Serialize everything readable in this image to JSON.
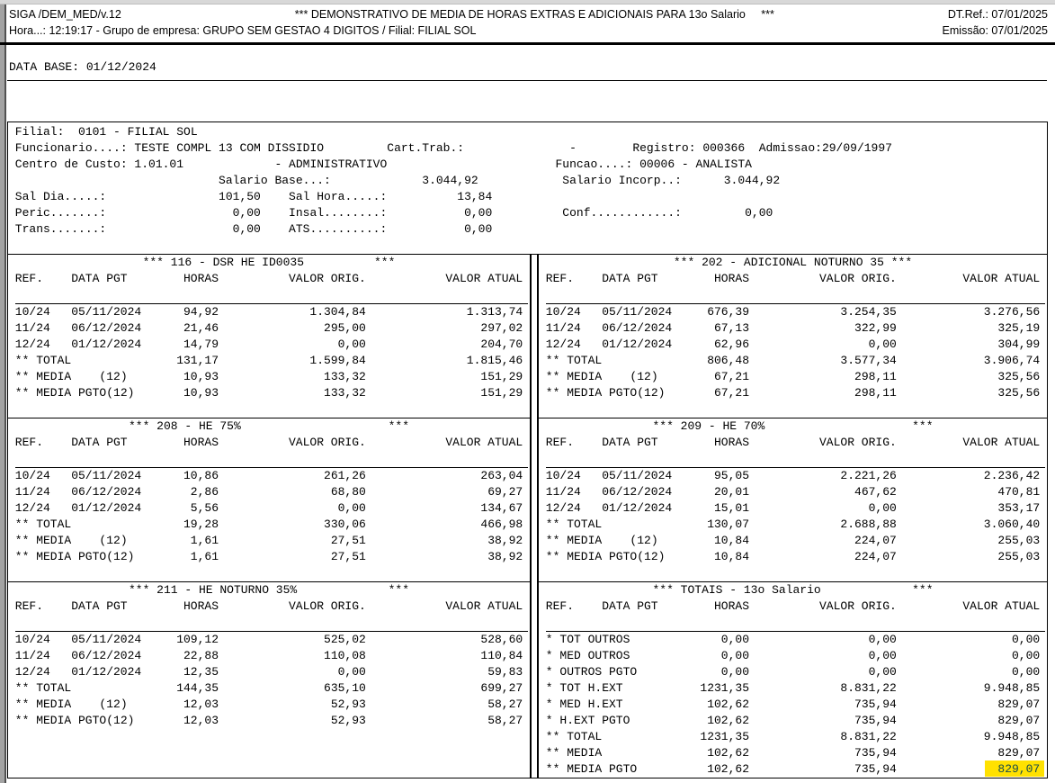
{
  "header": {
    "app_id": "SIGA /DEM_MED/v.12",
    "title": "*** DEMONSTRATIVO DE MEDIA DE HORAS EXTRAS E ADICIONAIS PARA 13o Salario     ***",
    "dt_ref": "DT.Ref.: 07/01/2025",
    "line2": "Hora...: 12:19:17 - Grupo de empresa: GRUPO SEM GESTAO 4 DIGITOS / Filial: FILIAL SOL",
    "emissao": "Emissão: 07/01/2025"
  },
  "data_base": "DATA BASE: 01/12/2024",
  "employee": {
    "lines": [
      " Filial:  0101 - FILIAL SOL",
      " Funcionario....: TESTE COMPL 13 COM DISSIDIO         Cart.Trab.:               -        Registro: 000366  Admissao:29/09/1997",
      " Centro de Custo: 1.01.01             - ADMINISTRATIVO                        Funcao....: 00006 - ANALISTA",
      "                              Salario Base...:             3.044,92            Salario Incorp..:      3.044,92",
      " Sal Dia.....:                101,50    Sal Hora.....:          13,84",
      " Peric.......:                  0,00    Insal........:           0,00          Conf............:         0,00",
      " Trans.......:                  0,00    ATS..........:           0,00",
      ""
    ]
  },
  "table_columns": [
    "REF.",
    "DATA PGT",
    "HORAS",
    "VALOR ORIG.",
    "VALOR ATUAL"
  ],
  "panels": [
    {
      "title": "*** 116 - DSR HE ID0035          ***",
      "rows": [
        [
          "10/24",
          "05/11/2024",
          "94,92",
          "1.304,84",
          "1.313,74"
        ],
        [
          "11/24",
          "06/12/2024",
          "21,46",
          "295,00",
          "297,02"
        ],
        [
          "12/24",
          "01/12/2024",
          "14,79",
          "0,00",
          "204,70"
        ],
        [
          "** TOTAL",
          "",
          "131,17",
          "1.599,84",
          "1.815,46"
        ],
        [
          "** MEDIA    (12)",
          "",
          "10,93",
          "133,32",
          "151,29"
        ],
        [
          "** MEDIA PGTO(12)",
          "",
          "10,93",
          "133,32",
          "151,29"
        ]
      ]
    },
    {
      "title": "*** 202 - ADICIONAL NOTURNO 35 ***",
      "rows": [
        [
          "10/24",
          "05/11/2024",
          "676,39",
          "3.254,35",
          "3.276,56"
        ],
        [
          "11/24",
          "06/12/2024",
          "67,13",
          "322,99",
          "325,19"
        ],
        [
          "12/24",
          "01/12/2024",
          "62,96",
          "0,00",
          "304,99"
        ],
        [
          "** TOTAL",
          "",
          "806,48",
          "3.577,34",
          "3.906,74"
        ],
        [
          "** MEDIA    (12)",
          "",
          "67,21",
          "298,11",
          "325,56"
        ],
        [
          "** MEDIA PGTO(12)",
          "",
          "67,21",
          "298,11",
          "325,56"
        ]
      ]
    },
    {
      "title": "*** 208 - HE 75%                     ***",
      "rows": [
        [
          "10/24",
          "05/11/2024",
          "10,86",
          "261,26",
          "263,04"
        ],
        [
          "11/24",
          "06/12/2024",
          "2,86",
          "68,80",
          "69,27"
        ],
        [
          "12/24",
          "01/12/2024",
          "5,56",
          "0,00",
          "134,67"
        ],
        [
          "** TOTAL",
          "",
          "19,28",
          "330,06",
          "466,98"
        ],
        [
          "** MEDIA    (12)",
          "",
          "1,61",
          "27,51",
          "38,92"
        ],
        [
          "** MEDIA PGTO(12)",
          "",
          "1,61",
          "27,51",
          "38,92"
        ]
      ]
    },
    {
      "title": "*** 209 - HE 70%                     ***",
      "rows": [
        [
          "10/24",
          "05/11/2024",
          "95,05",
          "2.221,26",
          "2.236,42"
        ],
        [
          "11/24",
          "06/12/2024",
          "20,01",
          "467,62",
          "470,81"
        ],
        [
          "12/24",
          "01/12/2024",
          "15,01",
          "0,00",
          "353,17"
        ],
        [
          "** TOTAL",
          "",
          "130,07",
          "2.688,88",
          "3.060,40"
        ],
        [
          "** MEDIA    (12)",
          "",
          "10,84",
          "224,07",
          "255,03"
        ],
        [
          "** MEDIA PGTO(12)",
          "",
          "10,84",
          "224,07",
          "255,03"
        ]
      ]
    },
    {
      "title": "*** 211 - HE NOTURNO 35%             ***",
      "rows": [
        [
          "10/24",
          "05/11/2024",
          "109,12",
          "525,02",
          "528,60"
        ],
        [
          "11/24",
          "06/12/2024",
          "22,88",
          "110,08",
          "110,84"
        ],
        [
          "12/24",
          "01/12/2024",
          "12,35",
          "0,00",
          "59,83"
        ],
        [
          "** TOTAL",
          "",
          "144,35",
          "635,10",
          "699,27"
        ],
        [
          "** MEDIA    (12)",
          "",
          "12,03",
          "52,93",
          "58,27"
        ],
        [
          "** MEDIA PGTO(12)",
          "",
          "12,03",
          "52,93",
          "58,27"
        ]
      ]
    },
    {
      "title": "*** TOTAIS - 13o Salario             ***",
      "rows": [
        [
          "* TOT OUTROS",
          "",
          "0,00",
          "0,00",
          "0,00"
        ],
        [
          "* MED OUTROS",
          "",
          "0,00",
          "0,00",
          "0,00"
        ],
        [
          "* OUTROS PGTO",
          "",
          "0,00",
          "0,00",
          "0,00"
        ],
        [
          "* TOT H.EXT",
          "",
          "1231,35",
          "8.831,22",
          "9.948,85"
        ],
        [
          "* MED H.EXT",
          "",
          "102,62",
          "735,94",
          "829,07"
        ],
        [
          "* H.EXT PGTO",
          "",
          "102,62",
          "735,94",
          "829,07"
        ],
        [
          "** TOTAL",
          "",
          "1231,35",
          "8.831,22",
          "9.948,85"
        ],
        [
          "** MEDIA",
          "",
          "102,62",
          "735,94",
          "829,07"
        ],
        [
          "** MEDIA PGTO",
          "",
          "102,62",
          "735,94",
          "829,07"
        ]
      ]
    }
  ],
  "highlight": {
    "panel_index": 5,
    "row_index": 8,
    "col_index": 4,
    "value": "829,07",
    "color": "#ffe100"
  }
}
